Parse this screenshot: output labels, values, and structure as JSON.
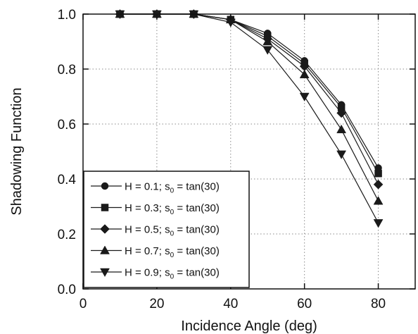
{
  "chart_data": {
    "type": "line",
    "title": "",
    "xlabel": "Incidence Angle (deg)",
    "ylabel": "Shadowing Function",
    "xlim": [
      0,
      90
    ],
    "ylim": [
      0.0,
      1.0
    ],
    "xticks": [
      0,
      20,
      40,
      60,
      80
    ],
    "yticks": [
      0.0,
      0.2,
      0.4,
      0.6,
      0.8,
      1.0
    ],
    "xtick_labels": [
      "0",
      "20",
      "40",
      "60",
      "80"
    ],
    "ytick_labels": [
      "0.0",
      "0.2",
      "0.4",
      "0.6",
      "0.8",
      "1.0"
    ],
    "grid": true,
    "grid_style": "dotted",
    "legend_position": "lower-left",
    "x": [
      10,
      20,
      30,
      40,
      50,
      60,
      70,
      80
    ],
    "series": [
      {
        "name": "H = 0.1; s0 = tan(30)",
        "label_main": "H = 0.1; s",
        "label_sub": "0",
        "label_tail": " = tan(30)",
        "marker": "circle",
        "values": [
          1.0,
          1.0,
          1.0,
          0.98,
          0.93,
          0.83,
          0.67,
          0.44
        ]
      },
      {
        "name": "H = 0.3; s0 = tan(30)",
        "label_main": "H = 0.3; s",
        "label_sub": "0",
        "label_tail": " = tan(30)",
        "marker": "square",
        "values": [
          1.0,
          1.0,
          1.0,
          0.98,
          0.92,
          0.82,
          0.66,
          0.42
        ]
      },
      {
        "name": "H = 0.5; s0 = tan(30)",
        "label_main": "H = 0.5; s",
        "label_sub": "0",
        "label_tail": " = tan(30)",
        "marker": "diamond",
        "values": [
          1.0,
          1.0,
          1.0,
          0.98,
          0.91,
          0.81,
          0.64,
          0.38
        ]
      },
      {
        "name": "H = 0.7; s0 = tan(30)",
        "label_main": "H = 0.7; s",
        "label_sub": "0",
        "label_tail": " = tan(30)",
        "marker": "triangle-up",
        "values": [
          1.0,
          1.0,
          1.0,
          0.98,
          0.9,
          0.78,
          0.58,
          0.32
        ]
      },
      {
        "name": "H = 0.9; s0 = tan(30)",
        "label_main": "H = 0.9; s",
        "label_sub": "0",
        "label_tail": " = tan(30)",
        "marker": "triangle-down",
        "values": [
          1.0,
          1.0,
          1.0,
          0.97,
          0.87,
          0.7,
          0.49,
          0.24
        ]
      }
    ],
    "colors": {
      "line": "#1a1a1a",
      "grid": "#8a8a8a"
    }
  }
}
